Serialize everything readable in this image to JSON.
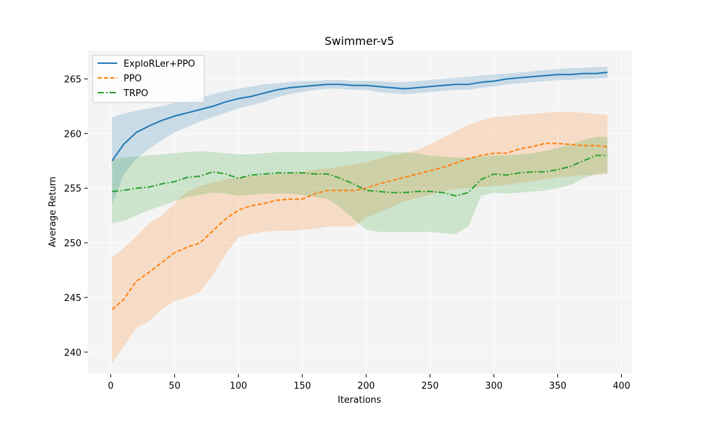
{
  "chart_data": {
    "type": "line",
    "title": "Swimmer-v5",
    "xlabel": "Iterations",
    "ylabel": "Average Return",
    "xlim": [
      -18,
      408
    ],
    "ylim": [
      238,
      267.6
    ],
    "xticks": [
      0,
      50,
      100,
      150,
      200,
      250,
      300,
      350,
      400
    ],
    "yticks": [
      240,
      245,
      250,
      255,
      260,
      265
    ],
    "grid": true,
    "legend_position": "top-left",
    "background": "#f4f4f4",
    "series": [
      {
        "name": "ExploRLer+PPO",
        "color": "#1f77b4",
        "dash": "solid",
        "x": [
          1,
          10,
          20,
          30,
          40,
          50,
          60,
          70,
          80,
          90,
          100,
          110,
          120,
          130,
          140,
          150,
          160,
          170,
          180,
          190,
          200,
          210,
          220,
          230,
          240,
          250,
          260,
          270,
          280,
          290,
          300,
          310,
          320,
          330,
          340,
          350,
          360,
          370,
          380,
          389
        ],
        "y": [
          257.5,
          259.0,
          260.1,
          260.7,
          261.2,
          261.6,
          261.9,
          262.2,
          262.5,
          262.9,
          263.2,
          263.4,
          263.7,
          264.0,
          264.2,
          264.3,
          264.4,
          264.5,
          264.5,
          264.4,
          264.4,
          264.3,
          264.2,
          264.1,
          264.2,
          264.3,
          264.4,
          264.5,
          264.5,
          264.7,
          264.8,
          265.0,
          265.1,
          265.2,
          265.3,
          265.4,
          265.4,
          265.5,
          265.5,
          265.6
        ],
        "upper": [
          261.5,
          261.8,
          262.1,
          262.3,
          262.5,
          262.8,
          263.0,
          263.3,
          263.6,
          263.9,
          264.1,
          264.3,
          264.5,
          264.6,
          264.7,
          264.8,
          264.8,
          264.9,
          264.9,
          264.8,
          264.8,
          264.8,
          264.7,
          264.7,
          264.8,
          264.9,
          265.0,
          265.1,
          265.2,
          265.3,
          265.4,
          265.5,
          265.6,
          265.7,
          265.8,
          265.9,
          266.0,
          266.0,
          266.1,
          266.1
        ],
        "lower": [
          253.5,
          256.2,
          257.7,
          258.6,
          259.4,
          260.1,
          260.6,
          261.1,
          261.5,
          261.9,
          262.3,
          262.6,
          262.9,
          263.3,
          263.6,
          263.8,
          264.0,
          264.1,
          264.1,
          264.0,
          264.0,
          263.8,
          263.7,
          263.6,
          263.7,
          263.8,
          263.9,
          264.0,
          264.0,
          264.2,
          264.3,
          264.5,
          264.6,
          264.7,
          264.8,
          264.9,
          264.9,
          265.0,
          265.0,
          265.1
        ]
      },
      {
        "name": "PPO",
        "color": "#ff7f0e",
        "dash": "dashed",
        "x": [
          1,
          10,
          20,
          30,
          40,
          50,
          60,
          70,
          80,
          90,
          100,
          110,
          120,
          130,
          140,
          150,
          160,
          170,
          180,
          190,
          200,
          210,
          220,
          230,
          240,
          250,
          260,
          270,
          280,
          290,
          300,
          310,
          320,
          330,
          340,
          350,
          360,
          370,
          380,
          389
        ],
        "y": [
          243.9,
          244.8,
          246.5,
          247.3,
          248.2,
          249.1,
          249.6,
          250.0,
          251.1,
          252.2,
          253.0,
          253.4,
          253.6,
          253.9,
          254.0,
          254.0,
          254.5,
          254.8,
          254.8,
          254.8,
          255.0,
          255.4,
          255.7,
          256.0,
          256.3,
          256.6,
          256.9,
          257.3,
          257.7,
          258.0,
          258.2,
          258.2,
          258.6,
          258.8,
          259.1,
          259.1,
          259.0,
          258.9,
          258.9,
          258.8
        ],
        "upper": [
          248.7,
          249.5,
          250.6,
          251.8,
          252.5,
          253.6,
          254.7,
          255.2,
          255.5,
          255.8,
          256.0,
          256.1,
          256.2,
          256.3,
          256.4,
          256.5,
          256.7,
          256.8,
          257.0,
          257.2,
          257.4,
          257.7,
          258.0,
          258.2,
          258.5,
          259.0,
          259.6,
          260.2,
          260.8,
          261.2,
          261.5,
          261.6,
          261.7,
          261.8,
          261.9,
          262.0,
          262.0,
          261.9,
          261.8,
          261.7
        ],
        "lower": [
          239.0,
          240.5,
          242.2,
          242.8,
          243.9,
          244.7,
          245.0,
          245.5,
          247.0,
          249.0,
          250.5,
          250.8,
          251.0,
          251.1,
          251.1,
          251.2,
          251.3,
          251.5,
          251.5,
          251.5,
          252.3,
          252.8,
          253.3,
          253.8,
          254.1,
          254.4,
          254.7,
          254.9,
          255.0,
          255.1,
          255.2,
          255.3,
          255.5,
          255.6,
          255.8,
          256.0,
          256.1,
          256.2,
          256.2,
          256.3
        ]
      },
      {
        "name": "TRPO",
        "color": "#2ca02c",
        "dash": "dashdot",
        "x": [
          1,
          10,
          20,
          30,
          40,
          50,
          60,
          70,
          80,
          90,
          100,
          110,
          120,
          130,
          140,
          150,
          160,
          170,
          180,
          190,
          200,
          210,
          220,
          230,
          240,
          250,
          260,
          270,
          280,
          290,
          300,
          310,
          320,
          330,
          340,
          350,
          360,
          370,
          380,
          389
        ],
        "y": [
          254.7,
          254.8,
          255.0,
          255.1,
          255.4,
          255.6,
          256.0,
          256.1,
          256.5,
          256.3,
          255.9,
          256.2,
          256.3,
          256.4,
          256.4,
          256.4,
          256.3,
          256.3,
          255.9,
          255.4,
          254.8,
          254.7,
          254.6,
          254.6,
          254.7,
          254.7,
          254.6,
          254.3,
          254.6,
          255.8,
          256.3,
          256.2,
          256.4,
          256.5,
          256.5,
          256.7,
          257.0,
          257.5,
          258.0,
          258.0
        ],
        "upper": [
          257.6,
          257.8,
          257.9,
          258.0,
          258.1,
          258.2,
          258.3,
          258.4,
          258.3,
          258.2,
          258.1,
          258.1,
          258.2,
          258.3,
          258.3,
          258.3,
          258.3,
          258.3,
          258.3,
          258.4,
          258.4,
          258.4,
          258.3,
          258.3,
          258.2,
          258.0,
          257.9,
          257.8,
          257.8,
          257.9,
          258.0,
          258.0,
          258.1,
          258.2,
          258.4,
          258.7,
          259.0,
          259.4,
          259.7,
          259.7
        ],
        "lower": [
          251.8,
          252.0,
          252.5,
          253.0,
          253.4,
          253.8,
          254.2,
          254.4,
          254.6,
          254.5,
          254.3,
          254.4,
          254.5,
          254.5,
          254.5,
          254.4,
          254.2,
          254.0,
          253.2,
          252.2,
          251.2,
          251.0,
          251.0,
          251.0,
          251.0,
          251.0,
          250.9,
          250.8,
          251.5,
          254.3,
          254.6,
          254.5,
          254.6,
          254.7,
          254.8,
          255.0,
          255.3,
          255.9,
          256.3,
          256.4
        ]
      }
    ]
  }
}
